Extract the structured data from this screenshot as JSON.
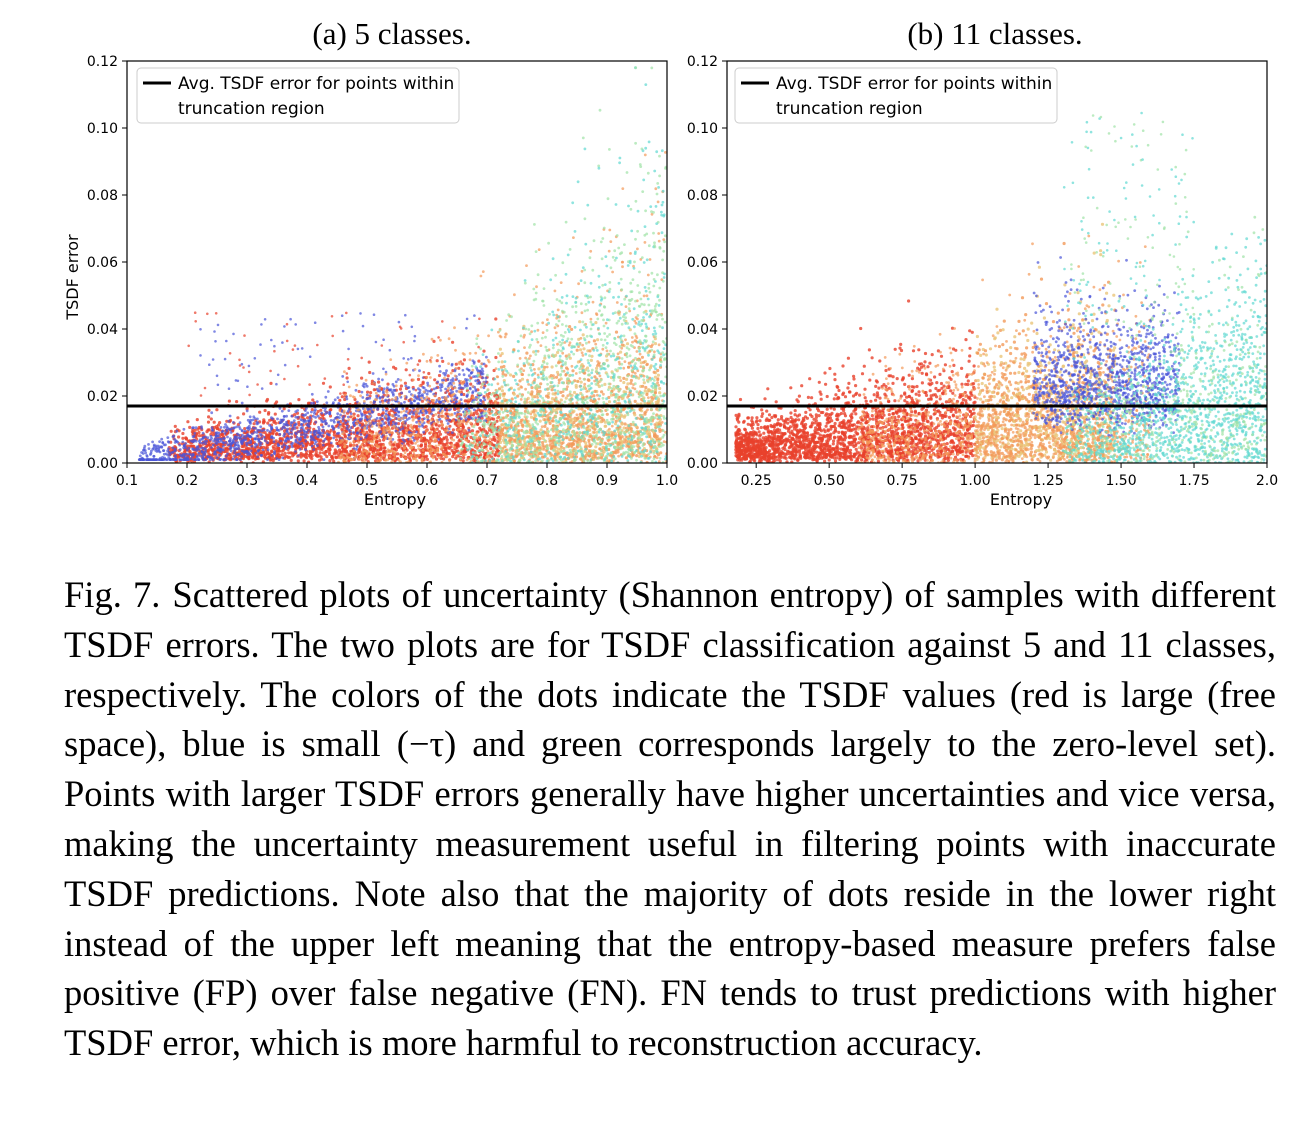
{
  "chart_data": [
    {
      "type": "scatter",
      "title": "(a) 5 classes.",
      "xlabel": "Entropy",
      "ylabel": "TSDF error",
      "xlim": [
        0.1,
        1.0
      ],
      "ylim": [
        0.0,
        0.12
      ],
      "xticks": [
        "0.1",
        "0.2",
        "0.3",
        "0.4",
        "0.5",
        "0.6",
        "0.7",
        "0.8",
        "0.9",
        "1.0"
      ],
      "xtick_values": [
        0.1,
        0.2,
        0.3,
        0.4,
        0.5,
        0.6,
        0.7,
        0.8,
        0.9,
        1.0
      ],
      "yticks": [
        "0.00",
        "0.02",
        "0.04",
        "0.06",
        "0.08",
        "0.10",
        "0.12"
      ],
      "ytick_values": [
        0.0,
        0.02,
        0.04,
        0.06,
        0.08,
        0.1,
        0.12
      ],
      "legend": {
        "placement": "upper-left",
        "entry": "Avg. TSDF error for points within truncation region"
      },
      "hline": {
        "y": 0.017,
        "color": "#000000"
      },
      "grid": false,
      "distribution": {
        "description": "color encodes TSDF value: red = large (free space), blue = small, green/cyan = zero-level set",
        "clusters": [
          {
            "color_group": "red",
            "x_range": [
              0.18,
              0.98
            ],
            "error_mean_slope": 0.022,
            "density": "very high"
          },
          {
            "color_group": "blue",
            "x_range": [
              0.12,
              0.7
            ],
            "error_mean_slope": 0.04,
            "density": "medium"
          },
          {
            "color_group": "orange",
            "x_range": [
              0.45,
              1.0
            ],
            "error_mean_slope": 0.035,
            "density": "medium"
          },
          {
            "color_group": "green",
            "x_range": [
              0.65,
              1.0
            ],
            "error_mean_slope": 0.06,
            "density": "medium"
          }
        ]
      }
    },
    {
      "type": "scatter",
      "title": "(b) 11 classes.",
      "xlabel": "Entropy",
      "ylabel": "",
      "xlim": [
        0.15,
        2.0
      ],
      "ylim": [
        0.0,
        0.12
      ],
      "xticks": [
        "0.25",
        "0.50",
        "0.75",
        "1.00",
        "1.25",
        "1.50",
        "1.75",
        "2.0"
      ],
      "xtick_values": [
        0.25,
        0.5,
        0.75,
        1.0,
        1.25,
        1.5,
        1.75,
        2.0
      ],
      "yticks": [
        "0.00",
        "0.02",
        "0.04",
        "0.06",
        "0.08",
        "0.10",
        "0.12"
      ],
      "ytick_values": [
        0.0,
        0.02,
        0.04,
        0.06,
        0.08,
        0.1,
        0.12
      ],
      "legend": {
        "placement": "upper-left",
        "entry": "Avg. TSDF error for points within truncation region"
      },
      "hline": {
        "y": 0.017,
        "color": "#000000"
      },
      "grid": false,
      "distribution": {
        "description": "color encodes TSDF value: red = large (free space), blue = small, green/cyan = zero-level set",
        "clusters": [
          {
            "color_group": "red",
            "x_range": [
              0.2,
              1.3
            ],
            "error_mean_slope": 0.03,
            "density": "very high"
          },
          {
            "color_group": "orange",
            "x_range": [
              0.6,
              1.6
            ],
            "error_mean_slope": 0.03,
            "density": "high"
          },
          {
            "color_group": "blue",
            "x_range": [
              1.2,
              1.7
            ],
            "error_mean_slope": 0.025,
            "density": "medium"
          },
          {
            "color_group": "cyan",
            "x_range": [
              1.3,
              2.0
            ],
            "error_mean_slope": 0.025,
            "density": "high"
          }
        ]
      }
    }
  ],
  "palette": {
    "red": "#e8412c",
    "orange": "#f39a5a",
    "yellow": "#eac57a",
    "blue": "#4a55d8",
    "green": "#9fe3a7",
    "cyan": "#5fd8d2",
    "axis": "#000000",
    "legend_border": "#cccccc"
  },
  "caption": {
    "label": "Fig. 7.",
    "text": "Scattered plots of uncertainty (Shannon entropy) of samples with different TSDF errors. The two plots are for TSDF classification against 5 and 11 classes, respectively. The colors of the dots indicate the TSDF values (red is large (free space), blue is small (−τ) and green corresponds largely to the zero-level set). Points with larger TSDF errors generally have higher uncertainties and vice versa, making the uncertainty measurement useful in filtering points with inaccurate TSDF predictions. Note also that the majority of dots reside in the lower right instead of the upper left meaning that the entropy-based measure prefers false positive (FP) over false negative (FN). FN tends to trust predictions with higher TSDF error, which is more harmful to reconstruction accuracy."
  }
}
